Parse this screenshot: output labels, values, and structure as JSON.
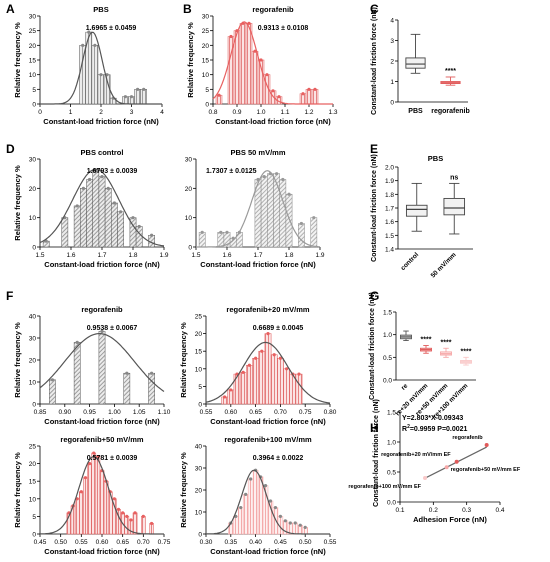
{
  "colors": {
    "gray_fill": "#c8c8c8",
    "gray_curve": "#555555",
    "gray_dot": "#888888",
    "red_fill": "#f7c0c0",
    "red_stroke": "#e05a5a",
    "red_curve": "#e86060",
    "red_dot": "#e86060",
    "curve_light": "#9a9a9a",
    "line_dark": "#333333",
    "red_light": "#f6a7a7",
    "red_lighter": "#f9c8c8"
  },
  "panels": {
    "A": {
      "letter": "A"
    },
    "B": {
      "letter": "B"
    },
    "C": {
      "letter": "C"
    },
    "D": {
      "letter": "D"
    },
    "E": {
      "letter": "E"
    },
    "F": {
      "letter": "F"
    },
    "G": {
      "letter": "G"
    },
    "H": {
      "letter": "H"
    }
  },
  "chart_data": [
    {
      "id": "A",
      "type": "bar",
      "title": "PBS",
      "annotation": "1.6965 ± 0.0459",
      "xlabel": "Constant-load friction force (nN)",
      "ylabel": "Relative frequency %",
      "xlim": [
        0,
        4
      ],
      "ylim": [
        0,
        30
      ],
      "xticks": [
        0,
        1,
        2,
        3,
        4
      ],
      "yticks": [
        0,
        5,
        10,
        15,
        20,
        25,
        30
      ],
      "bar_width": 0.2,
      "style": "gray",
      "hatch": "vertical",
      "x": [
        1.4,
        1.6,
        1.8,
        2.0,
        2.2,
        2.4,
        2.6,
        2.8,
        3.0,
        3.2,
        3.4
      ],
      "values": [
        20,
        24.5,
        20,
        10,
        10,
        2,
        0,
        2.5,
        2.5,
        5,
        5
      ],
      "fit": {
        "mu": 1.72,
        "sigma": 0.32,
        "amp": 24.5
      }
    },
    {
      "id": "B",
      "type": "bar",
      "title": "regorafenib",
      "annotation": "0.9313 ± 0.0108",
      "xlabel": "Constant-load friction force (nN)",
      "ylabel": "Relative frequency %",
      "xlim": [
        0.8,
        1.3
      ],
      "ylim": [
        0,
        30
      ],
      "xticks": [
        0.8,
        0.9,
        1.0,
        1.1,
        1.2,
        1.3
      ],
      "yticks": [
        0,
        5,
        10,
        15,
        20,
        25,
        30
      ],
      "bar_width": 0.025,
      "style": "red",
      "hatch": "vertical",
      "x": [
        0.825,
        0.875,
        0.9,
        0.925,
        0.95,
        0.975,
        1.0,
        1.025,
        1.05,
        1.075,
        1.15,
        1.175,
        1.2,
        1.225
      ],
      "values": [
        3,
        23,
        25,
        27.5,
        27.5,
        18,
        15,
        10,
        4.5,
        2.5,
        0,
        3.5,
        5,
        5
      ],
      "fit": {
        "mu": 0.93,
        "sigma": 0.055,
        "amp": 28
      }
    },
    {
      "id": "C",
      "type": "box",
      "ylabel": "Constant-load friction force (nN)",
      "ylim": [
        0,
        4
      ],
      "yticks": [
        0,
        1,
        2,
        3,
        4
      ],
      "categories": [
        "PBS",
        "regorafenib"
      ],
      "boxes": [
        {
          "min": 1.4,
          "q1": 1.65,
          "median": 1.85,
          "q3": 2.15,
          "max": 3.3
        },
        {
          "min": 0.82,
          "q1": 0.9,
          "median": 0.94,
          "q3": 1.0,
          "max": 1.22
        }
      ],
      "significance": [
        null,
        "****"
      ]
    },
    {
      "id": "D1",
      "type": "bar",
      "title": "PBS control",
      "annotation": "1.6793 ± 0.0039",
      "xlabel": "Constant-load friction force (nN)",
      "ylabel": "Relative frequency %",
      "xlim": [
        1.5,
        1.9
      ],
      "ylim": [
        0,
        30
      ],
      "xticks": [
        1.5,
        1.6,
        1.7,
        1.8,
        1.9
      ],
      "yticks": [
        0,
        10,
        20,
        30
      ],
      "bar_width": 0.02,
      "style": "gray",
      "hatch": "diagonal",
      "x": [
        1.52,
        1.58,
        1.62,
        1.64,
        1.66,
        1.68,
        1.7,
        1.72,
        1.74,
        1.76,
        1.8,
        1.82,
        1.86
      ],
      "values": [
        2,
        10,
        14,
        20,
        23,
        26,
        24,
        20,
        15,
        12,
        10,
        7,
        4
      ],
      "fit": {
        "mu": 1.68,
        "sigma": 0.075,
        "amp": 26.5
      }
    },
    {
      "id": "D2",
      "type": "bar",
      "title": "PBS 50 mV/mm",
      "annotation": "1.7307 ± 0.0125",
      "xlabel": "Constant-load friction force (nN)",
      "ylabel": "",
      "xlim": [
        1.5,
        1.9
      ],
      "ylim": [
        0,
        30
      ],
      "xticks": [
        1.5,
        1.6,
        1.7,
        1.8,
        1.9
      ],
      "yticks": [
        0,
        10,
        20,
        30
      ],
      "bar_width": 0.02,
      "style": "light",
      "hatch": "diagonal",
      "x": [
        1.52,
        1.58,
        1.6,
        1.62,
        1.64,
        1.7,
        1.72,
        1.74,
        1.76,
        1.78,
        1.8,
        1.84,
        1.88
      ],
      "values": [
        5,
        5,
        5,
        3,
        5,
        23,
        24,
        25,
        25,
        23,
        18,
        8,
        10
      ],
      "fit": {
        "mu": 1.73,
        "sigma": 0.05,
        "amp": 26
      }
    },
    {
      "id": "E",
      "type": "box",
      "title": "PBS",
      "ylabel": "Constant-load friction force (nN)",
      "ylim": [
        1.4,
        2.0
      ],
      "yticks": [
        1.4,
        1.5,
        1.6,
        1.7,
        1.8,
        1.9,
        2.0
      ],
      "categories": [
        "control",
        "50 mV/mm"
      ],
      "boxes": [
        {
          "min": 1.53,
          "q1": 1.64,
          "median": 1.69,
          "q3": 1.72,
          "max": 1.88
        },
        {
          "min": 1.51,
          "q1": 1.65,
          "median": 1.7,
          "q3": 1.77,
          "max": 1.88
        }
      ],
      "significance": [
        null,
        "ns"
      ]
    },
    {
      "id": "F1",
      "type": "bar",
      "title": "regorafenib",
      "annotation": "0.9538 ± 0.0067",
      "xlabel": "Constant-load friction force (nN)",
      "ylabel": "Relative frequency %",
      "xlim": [
        0.85,
        1.1
      ],
      "ylim": [
        0,
        40
      ],
      "xticks": [
        0.85,
        0.9,
        0.95,
        1.0,
        1.05,
        1.1
      ],
      "yticks": [
        0,
        10,
        20,
        30,
        40
      ],
      "bar_width": 0.0125,
      "style": "gray",
      "hatch": "diagonal",
      "x": [
        0.875,
        0.925,
        0.975,
        1.025,
        1.075
      ],
      "values": [
        11,
        28,
        33,
        14,
        14
      ],
      "fit": {
        "mu": 0.97,
        "sigma": 0.07,
        "amp": 32
      }
    },
    {
      "id": "F2",
      "type": "bar",
      "title": "regorafenib+20 mV/mm",
      "annotation": "0.6689 ± 0.0045",
      "xlabel": "Constant-load friction force (nN)",
      "ylabel": "Relative frequency %",
      "xlim": [
        0.55,
        0.8
      ],
      "ylim": [
        0,
        25
      ],
      "xticks": [
        0.55,
        0.6,
        0.65,
        0.7,
        0.75,
        0.8
      ],
      "yticks": [
        0,
        5,
        10,
        15,
        20,
        25
      ],
      "bar_width": 0.0125,
      "style": "red",
      "hatch": "vertical",
      "x": [
        0.5875,
        0.6,
        0.6125,
        0.625,
        0.6375,
        0.65,
        0.6625,
        0.675,
        0.6875,
        0.7,
        0.7125,
        0.725,
        0.7375
      ],
      "values": [
        2,
        4,
        8.5,
        9,
        11,
        13,
        15,
        20,
        14,
        13,
        10,
        8.5,
        8.5
      ],
      "fit": {
        "mu": 0.67,
        "sigma": 0.045,
        "amp": 17.5
      }
    },
    {
      "id": "F3",
      "type": "bar",
      "title": "regorafenib+50 mV/mm",
      "annotation": "0.5781 ± 0.0039",
      "xlabel": "Constant-load friction force (nN)",
      "ylabel": "Relative frequency %",
      "xlim": [
        0.45,
        0.75
      ],
      "ylim": [
        0,
        25
      ],
      "xticks": [
        0.45,
        0.5,
        0.55,
        0.6,
        0.65,
        0.7,
        0.75
      ],
      "yticks": [
        0,
        5,
        10,
        15,
        20,
        25
      ],
      "bar_width": 0.01,
      "style": "red",
      "hatch": "vertical",
      "x": [
        0.52,
        0.53,
        0.54,
        0.55,
        0.56,
        0.57,
        0.58,
        0.59,
        0.6,
        0.61,
        0.62,
        0.63,
        0.64,
        0.65,
        0.66,
        0.67,
        0.68,
        0.7,
        0.72
      ],
      "values": [
        6,
        8,
        10,
        12,
        16,
        20,
        23,
        22,
        18,
        15,
        12,
        10,
        7,
        6,
        5,
        4,
        6,
        5,
        3
      ],
      "fit": {
        "mu": 0.58,
        "sigma": 0.035,
        "amp": 22
      }
    },
    {
      "id": "F4",
      "type": "bar",
      "title": "regorafenib+100 mV/mm",
      "annotation": "0.3964 ± 0.0022",
      "xlabel": "Constant-load friction force (nN)",
      "ylabel": "Relative frequency %",
      "xlim": [
        0.3,
        0.55
      ],
      "ylim": [
        0,
        40
      ],
      "xticks": [
        0.3,
        0.35,
        0.4,
        0.45,
        0.5,
        0.55
      ],
      "yticks": [
        0,
        10,
        20,
        30,
        40
      ],
      "bar_width": 0.01,
      "style": "pink",
      "hatch": "vertical",
      "x": [
        0.35,
        0.36,
        0.37,
        0.38,
        0.39,
        0.4,
        0.41,
        0.42,
        0.43,
        0.44,
        0.45,
        0.46,
        0.47,
        0.48,
        0.49,
        0.5
      ],
      "values": [
        5,
        8,
        12,
        18,
        25,
        29,
        26,
        22,
        15,
        12,
        8,
        6,
        5,
        5,
        4,
        3
      ],
      "fit": {
        "mu": 0.397,
        "sigma": 0.025,
        "amp": 29
      }
    },
    {
      "id": "G",
      "type": "box",
      "ylabel": "Constant-load friction force (nN)",
      "ylim": [
        0,
        1.5
      ],
      "yticks": [
        0.0,
        0.5,
        1.0,
        1.5
      ],
      "categories": [
        "re",
        "re+20 mV/mm",
        "re+50 mV/mm",
        "re+100 mV/mm"
      ],
      "boxes": [
        {
          "min": 0.87,
          "q1": 0.91,
          "median": 0.95,
          "q3": 0.99,
          "max": 1.08
        },
        {
          "min": 0.59,
          "q1": 0.64,
          "median": 0.67,
          "q3": 0.7,
          "max": 0.76
        },
        {
          "min": 0.5,
          "q1": 0.55,
          "median": 0.58,
          "q3": 0.62,
          "max": 0.7
        },
        {
          "min": 0.33,
          "q1": 0.37,
          "median": 0.4,
          "q3": 0.43,
          "max": 0.5
        }
      ],
      "significance": [
        null,
        "****",
        "****",
        "****"
      ]
    },
    {
      "id": "H",
      "type": "scatter",
      "ylabel": "Constant-load friction force (nN)",
      "xlabel": "Adhesion Force (nN)",
      "xlim": [
        0.1,
        0.4
      ],
      "ylim": [
        0.0,
        1.5
      ],
      "xticks": [
        0.1,
        0.2,
        0.3,
        0.4
      ],
      "yticks": [
        0.0,
        0.5,
        1.0,
        1.5
      ],
      "equation": "Y=2.803*X-0.09343",
      "r2_prefix": "R",
      "r2_sup": "2",
      "r2_value": "=0.9959 P=0.0021",
      "points": [
        {
          "x": 0.36,
          "y": 0.95,
          "label": "regorafenib"
        },
        {
          "x": 0.27,
          "y": 0.67,
          "label": "regorafenib+20 mV/mm EF"
        },
        {
          "x": 0.24,
          "y": 0.58,
          "label": "regorafenib+50 mV/mm EF"
        },
        {
          "x": 0.175,
          "y": 0.4,
          "label": "regorafenib+100 mV/mm EF"
        }
      ],
      "fit": {
        "slope": 2.803,
        "intercept": -0.09343,
        "x0": 0.175,
        "x1": 0.36
      }
    }
  ]
}
